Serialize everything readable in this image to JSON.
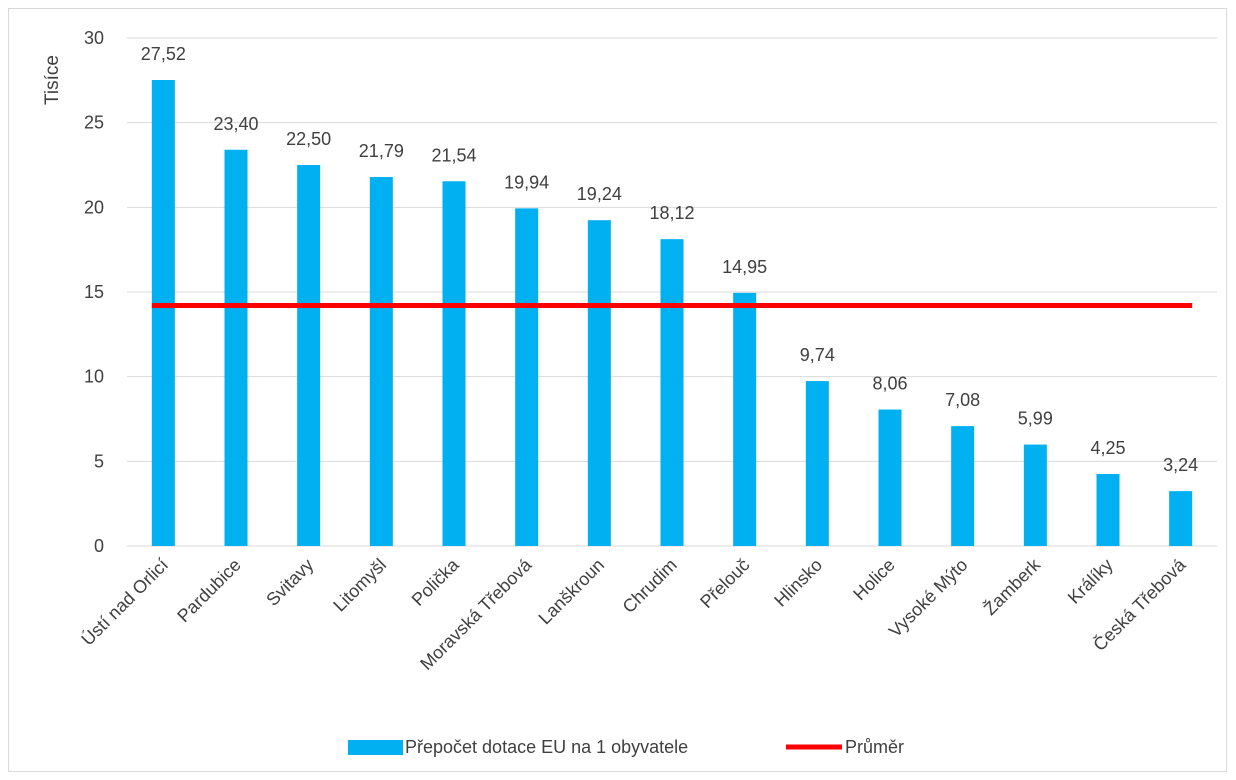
{
  "chart_data": {
    "type": "bar",
    "ylabel": "Tisíce",
    "ylim": [
      0,
      30
    ],
    "yticks": [
      "0",
      "5",
      "10",
      "15",
      "20",
      "25",
      "30"
    ],
    "ytick_values": [
      0,
      5,
      10,
      15,
      20,
      25,
      30
    ],
    "grid": true,
    "legend_position": "bottom",
    "categories": [
      "Ústí nad Orlicí",
      "Pardubice",
      "Svitavy",
      "Litomyšl",
      "Polička",
      "Moravská Třebová",
      "Lanškroun",
      "Chrudim",
      "Přelouč",
      "Hlinsko",
      "Holice",
      "Vysoké Mýto",
      "Žamberk",
      "Králíky",
      "Česká Třebová"
    ],
    "series": [
      {
        "name": "Přepočet dotace EU na 1 obyvatele",
        "type": "bar",
        "color": "#00b0f0",
        "values": [
          27.52,
          23.4,
          22.5,
          21.79,
          21.54,
          19.94,
          19.24,
          18.12,
          14.95,
          9.74,
          8.06,
          7.08,
          5.99,
          4.25,
          3.24
        ],
        "labels": [
          "27,52",
          "23,40",
          "22,50",
          "21,79",
          "21,54",
          "19,94",
          "19,24",
          "18,12",
          "14,95",
          "9,74",
          "8,06",
          "7,08",
          "5,99",
          "4,25",
          "3,24"
        ]
      },
      {
        "name": "Průměr",
        "type": "line",
        "color": "#ff0000",
        "value": 14.2
      }
    ]
  }
}
